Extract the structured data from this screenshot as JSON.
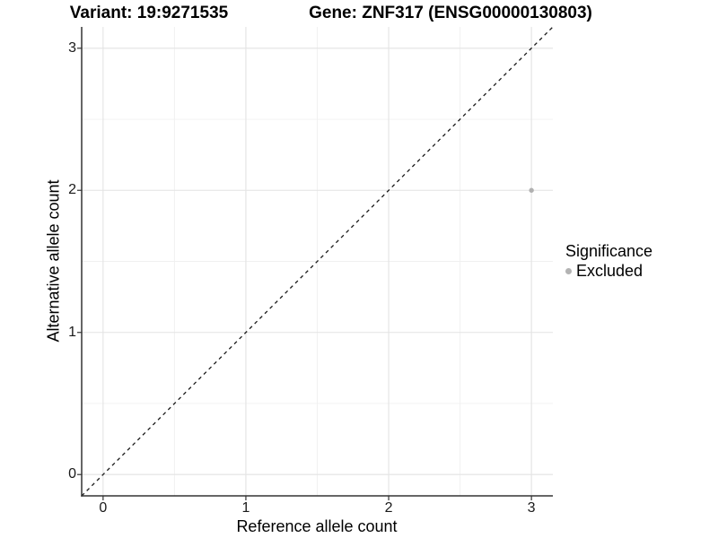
{
  "header": {
    "title_left": "Variant: 19:9271535",
    "title_right": "Gene: ZNF317 (ENSG00000130803)"
  },
  "chart_data": {
    "type": "scatter",
    "title": "Variant: 19:9271535   Gene: ZNF317 (ENSG00000130803)",
    "xlabel": "Reference allele count",
    "ylabel": "Alternative allele count",
    "xlim": [
      -0.15,
      3.15
    ],
    "ylim": [
      -0.15,
      3.15
    ],
    "x_ticks": [
      0,
      1,
      2,
      3
    ],
    "y_ticks": [
      0,
      1,
      2,
      3
    ],
    "x_minor_ticks": [
      0.5,
      1.5,
      2.5
    ],
    "y_minor_ticks": [
      0.5,
      1.5,
      2.5
    ],
    "grid": "major and minor gridlines, light gray, white background",
    "reference_line": {
      "type": "identity y=x",
      "style": "dashed",
      "color": "#1a1a1a"
    },
    "series": [
      {
        "name": "Excluded",
        "color": "#b0b0b0",
        "points": [
          {
            "x": 3,
            "y": 2
          }
        ]
      }
    ],
    "legend": {
      "title": "Significance",
      "position": "right",
      "items": [
        {
          "label": "Excluded",
          "color": "#b3b3b3"
        }
      ]
    },
    "colors": {
      "axis_line": "#333333",
      "grid_major": "#e3e3e3",
      "grid_minor": "#f0f0f0",
      "text": "#000000"
    }
  }
}
